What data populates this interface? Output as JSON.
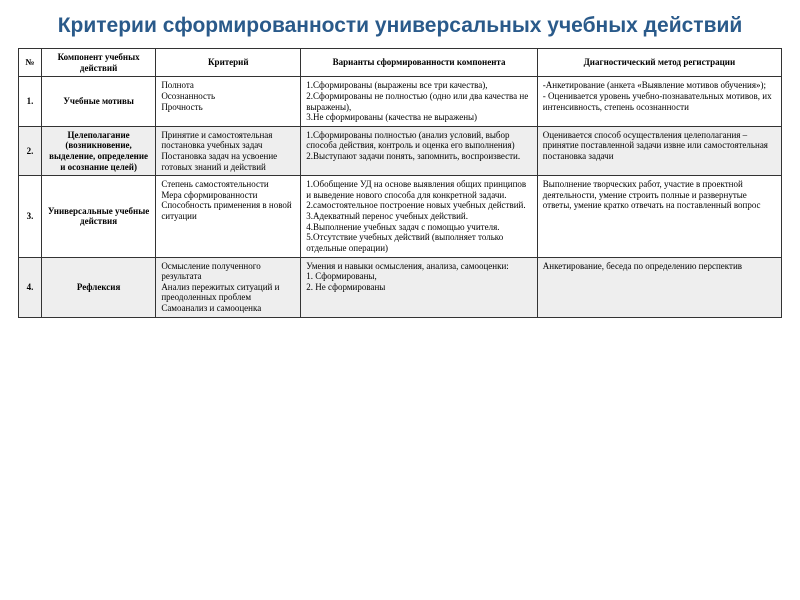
{
  "title": "Критерии сформированности универсальных учебных действий",
  "title_color": "#2a5a8a",
  "title_fontsize": 21,
  "body_fontsize": 9,
  "header_bg": "#ffffff",
  "shaded_bg": "#eeeeee",
  "border_color": "#333333",
  "columns": [
    "№",
    "Компонент учебных действий",
    "Критерий",
    "Варианты сформированности компонента",
    "Диагностический метод   регистрации"
  ],
  "rows": [
    {
      "shaded": false,
      "num": "1.",
      "component": "Учебные мотивы",
      "criterion": "Полнота\nОсознанность\nПрочность",
      "variants": "1.Сформированы (выражены все три качества),\n2.Сформированы не полностью (одно или два качества не выражены),\n3.Не сформированы (качества не выражены)",
      "method": "-Анкетирование (анкета «Выявление мотивов обучения»);\n- Оценивается уровень учебно-познавательных мотивов, их интенсивность, степень осознанности"
    },
    {
      "shaded": true,
      "num": "2.",
      "component": "Целеполагание (возникновение, выделение, определение и осознание целей)",
      "criterion": "Принятие и самостоятельная постановка учебных задач\nПостановка задач на усвоение готовых знаний и действий",
      "variants": "1.Сформированы полностью (анализ условий, выбор способа действия, контроль и оценка его выполнения)\n2.Выступают задачи понять, запомнить, воспроизвести.",
      "method": "Оценивается способ осуществления целеполагания – принятие поставленной задачи извне или самостоятельная постановка задачи"
    },
    {
      "shaded": false,
      "num": "3.",
      "component": "Универсальные учебные действия",
      "criterion": "Степень самостоятельности\nМера сформированности\nСпособность применения в новой ситуации",
      "variants": "1.Обобщение УД на основе выявления общих принципов и выведение нового способа для конкретной задачи.\n2.самостоятельное построение новых учебных действий.\n3.Адекватный перенос учебных действий.\n4.Выполнение учебных задач с помощью учителя.\n5.Отсутствие учебных действий (выполняет только отдельные операции)",
      "method": "Выполнение творческих работ, участие в проектной деятельности, умение строить полные и развернутые ответы, умение кратко отвечать на поставленный вопрос"
    },
    {
      "shaded": true,
      "num": "4.",
      "component": "Рефлексия",
      "criterion": "Осмысление полученного результата\nАнализ пережитых ситуаций и преодоленных проблем\nСамоанализ и самооценка",
      "variants": "Умения и навыки осмысления, анализа, самооценки:\n1. Сформированы,\n2. Не сформированы",
      "method": "Анкетирование, беседа по определению перспектив"
    }
  ]
}
